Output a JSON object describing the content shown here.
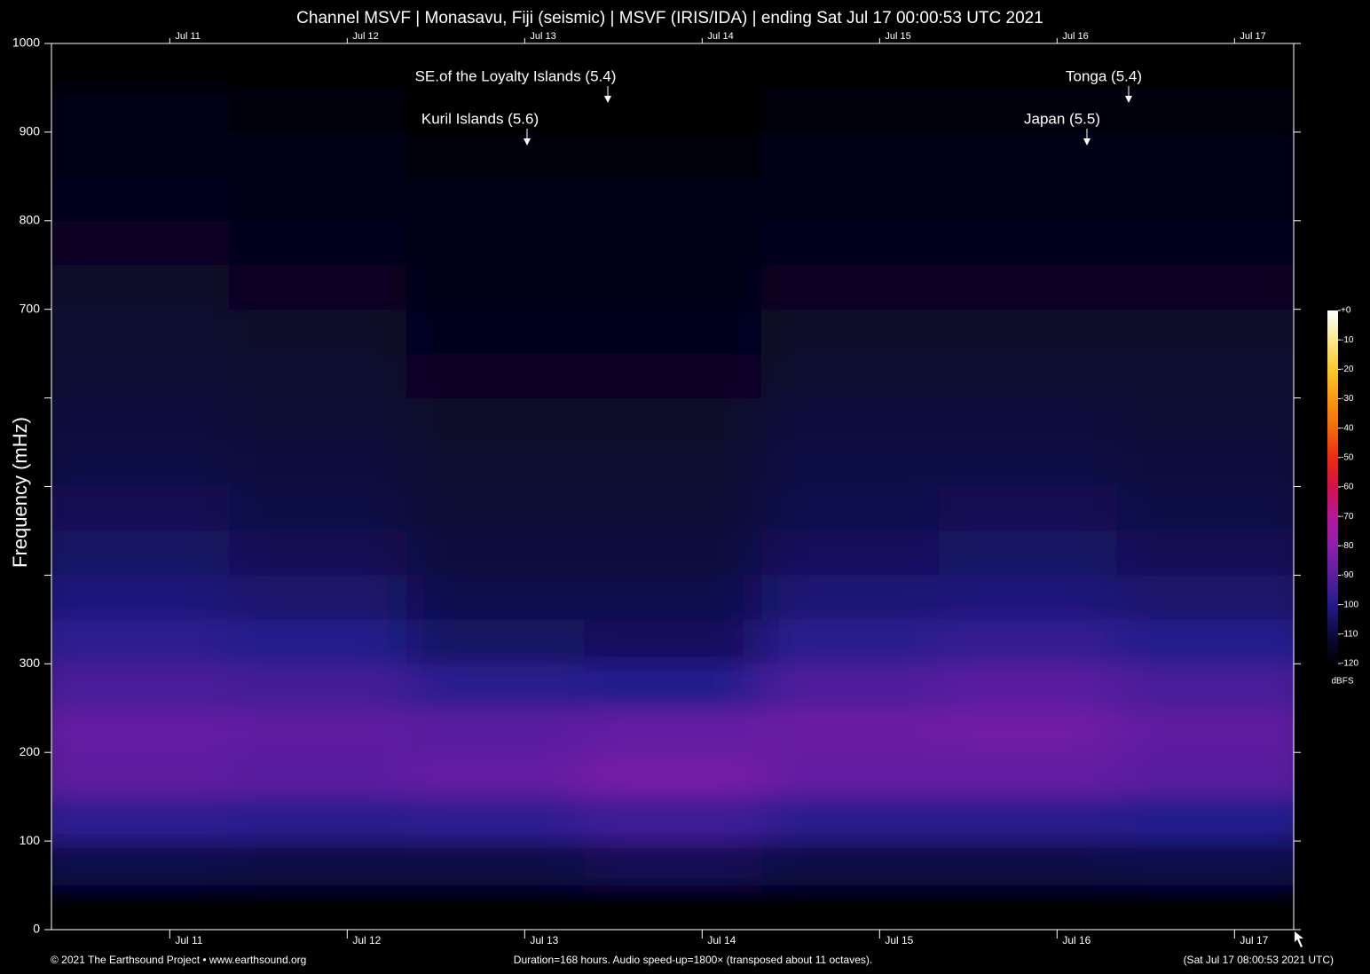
{
  "chart_data": {
    "type": "spectrogram",
    "title": "Channel MSVF | Monasavu, Fiji (seismic) | MSVF (IRIS/IDA) | ending Sat Jul 17 00:00:53 UTC 2021",
    "ylabel": "Frequency (mHz)",
    "xlim": [
      0,
      168
    ],
    "xticks": [
      {
        "value": 16,
        "label": "Jul 11"
      },
      {
        "value": 40,
        "label": "Jul 12"
      },
      {
        "value": 64,
        "label": "Jul 13"
      },
      {
        "value": 88,
        "label": "Jul 14"
      },
      {
        "value": 112,
        "label": "Jul 15"
      },
      {
        "value": 136,
        "label": "Jul 16"
      },
      {
        "value": 160,
        "label": "Jul 17"
      }
    ],
    "ylim": [
      0,
      1000
    ],
    "yticks": [
      0,
      100,
      200,
      300,
      {
        "value": 400,
        "label": null
      },
      {
        "value": 500,
        "label": null
      },
      {
        "value": 600,
        "label": null
      },
      700,
      800,
      900,
      1000
    ],
    "x_bins": [
      0,
      24,
      48,
      72,
      96,
      120,
      144,
      168
    ],
    "y_bins": [
      0,
      50,
      100,
      150,
      200,
      250,
      300,
      350,
      400,
      450,
      500,
      550,
      600,
      650,
      700,
      750,
      800,
      850,
      900,
      950,
      1000
    ],
    "values": [
      [
        -120,
        -120,
        -120,
        -120,
        -120,
        -120,
        -120
      ],
      [
        -108,
        -109,
        -109,
        -107,
        -109,
        -109,
        -108
      ],
      [
        -98,
        -99,
        -98,
        -95,
        -99,
        -99,
        -100
      ],
      [
        -89,
        -90,
        -88,
        -85,
        -88,
        -88,
        -90
      ],
      [
        -88,
        -89,
        -90,
        -88,
        -87,
        -86,
        -89
      ],
      [
        -93,
        -94,
        -99,
        -100,
        -92,
        -90,
        -93
      ],
      [
        -98,
        -100,
        -105,
        -106,
        -99,
        -97,
        -100
      ],
      [
        -102,
        -104,
        -108,
        -108,
        -103,
        -102,
        -104
      ],
      [
        -105,
        -107,
        -110,
        -110,
        -106,
        -105,
        -107
      ],
      [
        -107,
        -109,
        -111,
        -111,
        -108,
        -107,
        -109
      ],
      [
        -109,
        -110,
        -112,
        -112,
        -109,
        -109,
        -110
      ],
      [
        -110,
        -111,
        -113,
        -113,
        -110,
        -110,
        -111
      ],
      [
        -111,
        -112,
        -114,
        -114,
        -112,
        -112,
        -112
      ],
      [
        -112,
        -113,
        -115,
        -115,
        -113,
        -113,
        -113
      ],
      [
        -113,
        -114,
        -116,
        -116,
        -114,
        -114,
        -114
      ],
      [
        -114,
        -115,
        -116,
        -116,
        -115,
        -115,
        -115
      ],
      [
        -115,
        -116,
        -117,
        -117,
        -116,
        -116,
        -116
      ],
      [
        -116,
        -117,
        -118,
        -118,
        -117,
        -117,
        -117
      ],
      [
        -117,
        -118,
        -119,
        -119,
        -118,
        -118,
        -118
      ],
      [
        -119,
        -120,
        -120,
        -120,
        -120,
        -120,
        -120
      ]
    ],
    "colorbar": {
      "label": "dBFS",
      "lim": [
        -120,
        0
      ],
      "ticks": [
        {
          "value": 0,
          "label": "+0"
        },
        -10,
        -20,
        -30,
        -40,
        -50,
        -60,
        -70,
        -80,
        -90,
        -100,
        -110,
        -120
      ],
      "colorscale": [
        "#000000",
        "#0c0a3c",
        "#241b8c",
        "#5a1fa0",
        "#8e1fae",
        "#b5189a",
        "#d60f4a",
        "#ee2a10",
        "#f46a0a",
        "#f99a14",
        "#fcc82a",
        "#fde98a",
        "#ffffff"
      ]
    },
    "annotations": [
      "SE.of the Loyalty Islands (5.4)",
      "Kuril Islands (5.6)",
      "Tonga (5.4)",
      "Japan (5.5)"
    ],
    "footer": {
      "left": "© 2021 The Earthsound Project • www.earthsound.org",
      "center": "Duration=168 hours. Audio speed-up=1800× (transposed about 11 octaves).",
      "right": "(Sat Jul 17 08:00:53 2021 UTC)"
    }
  }
}
